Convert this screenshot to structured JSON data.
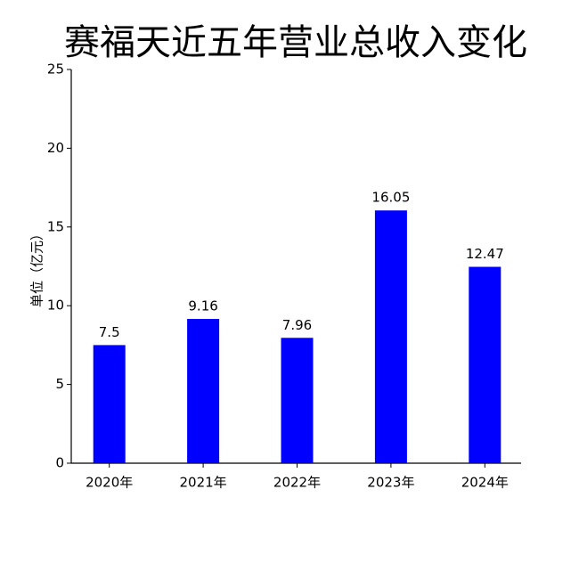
{
  "chart_data": {
    "type": "bar",
    "title": "赛福天近五年营业总收入变化",
    "y_label": "单位（亿元）",
    "categories": [
      "2020年",
      "2021年",
      "2022年",
      "2023年",
      "2024年"
    ],
    "values": [
      7.5,
      9.16,
      7.96,
      16.05,
      12.47
    ],
    "color": "#0000ff",
    "ylim": [
      0,
      25
    ],
    "yticks": [
      0,
      5,
      10,
      15,
      20,
      25
    ],
    "grid": false
  }
}
